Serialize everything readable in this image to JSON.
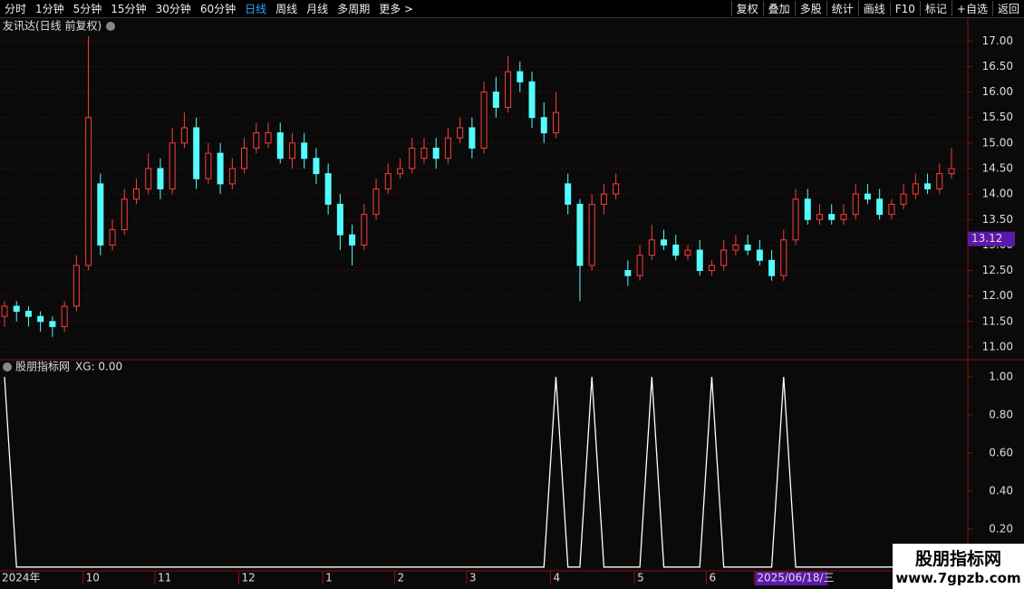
{
  "toolbar": {
    "left": [
      "分时",
      "1分钟",
      "5分钟",
      "15分钟",
      "30分钟",
      "60分钟",
      "日线",
      "周线",
      "月线",
      "多周期",
      "更多 >"
    ],
    "right": [
      "复权",
      "叠加",
      "多股",
      "统计",
      "画线",
      "F10",
      "标记",
      "+自选",
      "返回"
    ]
  },
  "chart_data": [
    {
      "type": "candlestick",
      "title": "友讯达(日线 前复权)",
      "open": [
        11.6,
        11.8,
        11.7,
        11.6,
        11.5,
        11.4,
        11.8,
        12.6,
        14.2,
        13.0,
        13.3,
        13.9,
        14.1,
        14.5,
        14.1,
        15.0,
        15.3,
        14.3,
        14.8,
        14.2,
        14.5,
        14.9,
        15.0,
        15.2,
        14.7,
        15.0,
        14.7,
        14.4,
        13.8,
        13.2,
        13.0,
        13.6,
        14.1,
        14.4,
        14.5,
        14.7,
        14.9,
        14.7,
        15.1,
        15.3,
        14.9,
        16.0,
        15.7,
        16.4,
        16.2,
        15.5,
        15.2,
        14.2,
        13.8,
        12.6,
        13.8,
        14.0,
        12.5,
        12.4,
        12.8,
        13.1,
        13.0,
        12.8,
        12.9,
        12.5,
        12.6,
        12.9,
        13.0,
        12.9,
        12.7,
        12.4,
        13.1,
        13.9,
        13.5,
        13.6,
        13.5,
        13.6,
        14.0,
        13.9,
        13.6,
        13.8,
        14.0,
        14.2,
        14.1,
        14.4
      ],
      "high": [
        11.9,
        11.9,
        11.8,
        11.7,
        11.6,
        11.9,
        12.8,
        17.1,
        14.4,
        13.5,
        14.1,
        14.3,
        14.8,
        14.7,
        15.3,
        15.6,
        15.5,
        15.0,
        15.0,
        14.7,
        15.1,
        15.4,
        15.4,
        15.4,
        15.2,
        15.2,
        14.9,
        14.6,
        14.0,
        13.4,
        13.8,
        14.3,
        14.6,
        14.7,
        15.1,
        15.1,
        15.1,
        15.3,
        15.5,
        15.5,
        16.2,
        16.3,
        16.7,
        16.6,
        16.4,
        15.8,
        16.0,
        14.4,
        13.9,
        14.0,
        14.2,
        14.4,
        12.7,
        13.0,
        13.4,
        13.3,
        13.2,
        13.0,
        13.1,
        12.7,
        13.1,
        13.2,
        13.2,
        13.1,
        12.9,
        13.3,
        14.1,
        14.1,
        13.8,
        13.8,
        13.8,
        14.2,
        14.2,
        14.1,
        13.9,
        14.2,
        14.4,
        14.4,
        14.6,
        14.9
      ],
      "low": [
        11.4,
        11.5,
        11.4,
        11.3,
        11.2,
        11.3,
        11.7,
        12.5,
        12.8,
        12.9,
        13.2,
        13.8,
        14.0,
        13.9,
        14.0,
        14.9,
        14.1,
        14.2,
        14.0,
        14.1,
        14.4,
        14.8,
        14.9,
        14.6,
        14.5,
        14.5,
        14.2,
        13.6,
        12.9,
        12.6,
        12.9,
        13.5,
        14.0,
        14.3,
        14.4,
        14.6,
        14.5,
        14.6,
        15.0,
        14.7,
        14.8,
        15.5,
        15.6,
        16.0,
        15.3,
        15.0,
        15.1,
        13.6,
        11.9,
        12.5,
        13.6,
        13.9,
        12.2,
        12.3,
        12.7,
        12.9,
        12.7,
        12.7,
        12.4,
        12.4,
        12.5,
        12.8,
        12.8,
        12.6,
        12.3,
        12.3,
        13.0,
        13.4,
        13.4,
        13.4,
        13.4,
        13.5,
        13.8,
        13.5,
        13.5,
        13.7,
        13.9,
        14.0,
        14.0,
        14.3
      ],
      "close": [
        11.8,
        11.7,
        11.6,
        11.5,
        11.4,
        11.8,
        12.6,
        15.5,
        13.0,
        13.3,
        13.9,
        14.1,
        14.5,
        14.1,
        15.0,
        15.3,
        14.3,
        14.8,
        14.2,
        14.5,
        14.9,
        15.2,
        15.2,
        14.7,
        15.0,
        14.7,
        14.4,
        13.8,
        13.2,
        13.0,
        13.6,
        14.1,
        14.4,
        14.5,
        14.9,
        14.9,
        14.7,
        15.1,
        15.3,
        14.9,
        16.0,
        15.7,
        16.4,
        16.2,
        15.5,
        15.2,
        15.6,
        13.8,
        12.6,
        13.8,
        14.0,
        14.2,
        12.4,
        12.8,
        13.1,
        13.0,
        12.8,
        12.9,
        12.5,
        12.6,
        12.9,
        13.0,
        12.9,
        12.7,
        12.4,
        13.1,
        13.9,
        13.5,
        13.6,
        13.5,
        13.6,
        14.0,
        13.9,
        13.6,
        13.8,
        14.0,
        14.2,
        14.1,
        14.4,
        14.5
      ],
      "up_color": "#ff3c3c",
      "down_color": "#54fcfc",
      "ylim": [
        10.75,
        17.45
      ],
      "yticks": [
        {
          "value": 11,
          "label": "11.00"
        },
        {
          "value": 11.5,
          "label": "11.50"
        },
        {
          "value": 12,
          "label": "12.00"
        },
        {
          "value": 12.5,
          "label": "12.50"
        },
        {
          "value": 13,
          "label": "13.00"
        },
        {
          "value": 13.5,
          "label": "13.50"
        },
        {
          "value": 14,
          "label": "14.00"
        },
        {
          "value": 14.5,
          "label": "14.50"
        },
        {
          "value": 15,
          "label": "15.00"
        },
        {
          "value": 15.5,
          "label": "15.50"
        },
        {
          "value": 16,
          "label": "16.00"
        },
        {
          "value": 16.5,
          "label": "16.50"
        },
        {
          "value": 17,
          "label": "17.00"
        }
      ],
      "grid": true,
      "price_marker": 13.12,
      "x_labels": [
        "2024年",
        "10",
        "11",
        "12",
        "1",
        "2",
        "3",
        "4",
        "5",
        "6",
        "2025/06/18/三"
      ]
    },
    {
      "type": "line",
      "title": "股朋指标网",
      "series": [
        {
          "name": "XG: 0.00",
          "color": "#ffffff",
          "values": [
            1,
            0,
            0,
            0,
            0,
            0,
            0,
            0,
            0,
            0,
            0,
            0,
            0,
            0,
            0,
            0,
            0,
            0,
            0,
            0,
            0,
            0,
            0,
            0,
            0,
            0,
            0,
            0,
            0,
            0,
            0,
            0,
            0,
            0,
            0,
            0,
            0,
            0,
            0,
            0,
            0,
            0,
            0,
            0,
            0,
            0,
            1,
            0,
            0,
            1,
            0,
            0,
            0,
            0,
            1,
            0,
            0,
            0,
            0,
            1,
            0,
            0,
            0,
            0,
            0,
            1,
            0,
            0,
            0,
            0,
            0,
            0,
            0,
            0,
            0,
            0,
            0,
            0,
            0,
            0
          ]
        }
      ],
      "ylim": [
        -0.02,
        1.09
      ],
      "yticks": [
        {
          "value": 0.2,
          "label": "0.20"
        },
        {
          "value": 0.4,
          "label": "0.40"
        },
        {
          "value": 0.6,
          "label": "0.60"
        },
        {
          "value": 0.8,
          "label": "0.80"
        },
        {
          "value": 1,
          "label": "1.00"
        }
      ]
    }
  ],
  "watermark": {
    "title": "股朋指标网",
    "url": "www.7gpzb.com"
  }
}
